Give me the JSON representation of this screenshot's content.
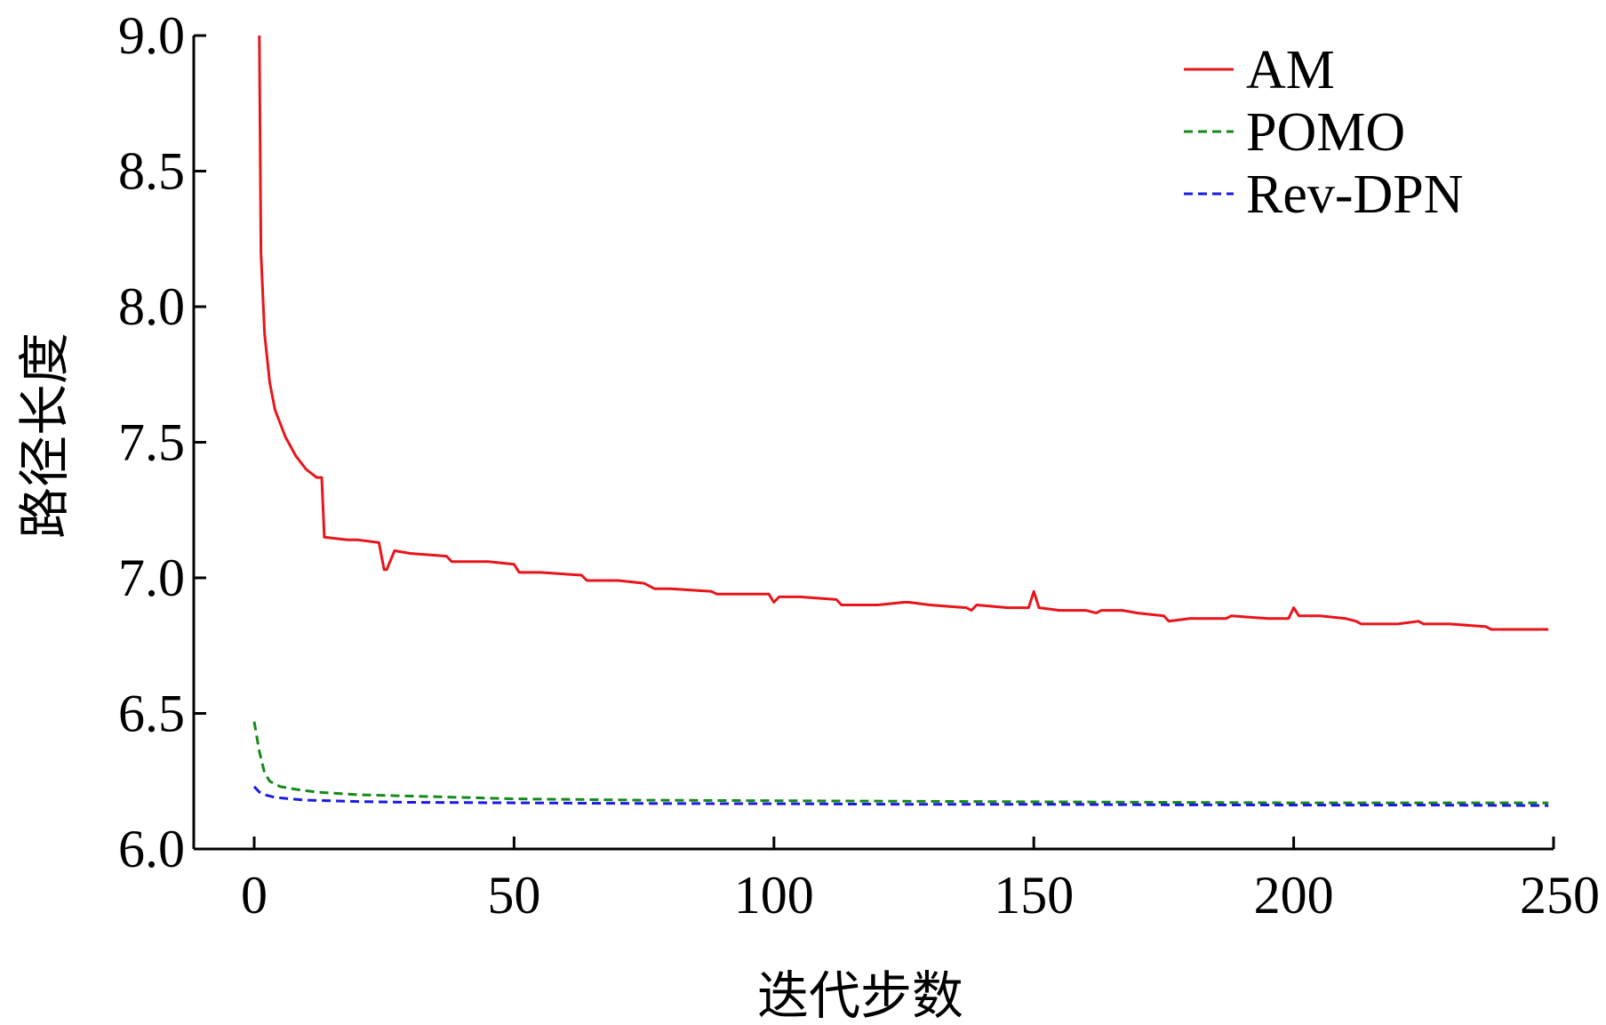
{
  "chart_data": {
    "type": "line",
    "title": "",
    "xlabel": "迭代步数",
    "ylabel": "路径长度",
    "xlim": [
      -12,
      250
    ],
    "ylim": [
      6.0,
      9.0
    ],
    "xticks": [
      0,
      50,
      100,
      150,
      200,
      250
    ],
    "xtick_labels": [
      "0",
      "50",
      "100",
      "150",
      "200",
      "250"
    ],
    "yticks": [
      6.0,
      6.5,
      7.0,
      7.5,
      8.0,
      8.5,
      9.0
    ],
    "ytick_labels": [
      "6.0",
      "6.5",
      "7.0",
      "7.5",
      "8.0",
      "8.5",
      "9.0"
    ],
    "grid": false,
    "legend_position": "top-right",
    "series": [
      {
        "name": "AM",
        "color": "#e8151b",
        "dash": "solid",
        "x": [
          1,
          1.3,
          2,
          3,
          4,
          6,
          8,
          10,
          12,
          13,
          13.5,
          18,
          20,
          24,
          25,
          25.5,
          27,
          30,
          37,
          38,
          45,
          50,
          51,
          55,
          63,
          64,
          70,
          75,
          77,
          80,
          88,
          89,
          99,
          100,
          101,
          105,
          112,
          113,
          120,
          125,
          126,
          130,
          137,
          138,
          139,
          145,
          149,
          150,
          151,
          155,
          160,
          162,
          163,
          167,
          170,
          175,
          176,
          180,
          187,
          188,
          195,
          199,
          200,
          201,
          205,
          210,
          212,
          213,
          220,
          224,
          225,
          230,
          237,
          238,
          240,
          249
        ],
        "values": [
          9.0,
          8.2,
          7.9,
          7.72,
          7.62,
          7.52,
          7.45,
          7.4,
          7.37,
          7.37,
          7.15,
          7.14,
          7.14,
          7.13,
          7.03,
          7.03,
          7.1,
          7.09,
          7.08,
          7.06,
          7.06,
          7.05,
          7.02,
          7.02,
          7.01,
          6.99,
          6.99,
          6.98,
          6.96,
          6.96,
          6.95,
          6.94,
          6.94,
          6.91,
          6.93,
          6.93,
          6.92,
          6.9,
          6.9,
          6.91,
          6.91,
          6.9,
          6.89,
          6.88,
          6.9,
          6.89,
          6.89,
          6.95,
          6.89,
          6.88,
          6.88,
          6.87,
          6.88,
          6.88,
          6.87,
          6.86,
          6.84,
          6.85,
          6.85,
          6.86,
          6.85,
          6.85,
          6.89,
          6.86,
          6.86,
          6.85,
          6.84,
          6.83,
          6.83,
          6.84,
          6.83,
          6.83,
          6.82,
          6.81,
          6.81,
          6.81
        ]
      },
      {
        "name": "POMO",
        "color": "#15891a",
        "dash": "dashed",
        "x": [
          0,
          1,
          2,
          3,
          5,
          8,
          12,
          20,
          30,
          40,
          50,
          75,
          100,
          125,
          150,
          175,
          200,
          225,
          249
        ],
        "values": [
          6.47,
          6.36,
          6.28,
          6.25,
          6.23,
          6.22,
          6.21,
          6.2,
          6.195,
          6.19,
          6.185,
          6.18,
          6.178,
          6.176,
          6.174,
          6.172,
          6.17,
          6.17,
          6.17
        ]
      },
      {
        "name": "Rev-DPN",
        "color": "#1a1ae0",
        "dash": "dashed",
        "x": [
          0,
          1,
          2,
          4,
          7,
          10,
          20,
          30,
          50,
          75,
          100,
          125,
          150,
          175,
          200,
          225,
          249
        ],
        "values": [
          6.23,
          6.21,
          6.2,
          6.19,
          6.185,
          6.18,
          6.175,
          6.172,
          6.17,
          6.168,
          6.167,
          6.165,
          6.165,
          6.163,
          6.162,
          6.162,
          6.16
        ]
      }
    ]
  }
}
